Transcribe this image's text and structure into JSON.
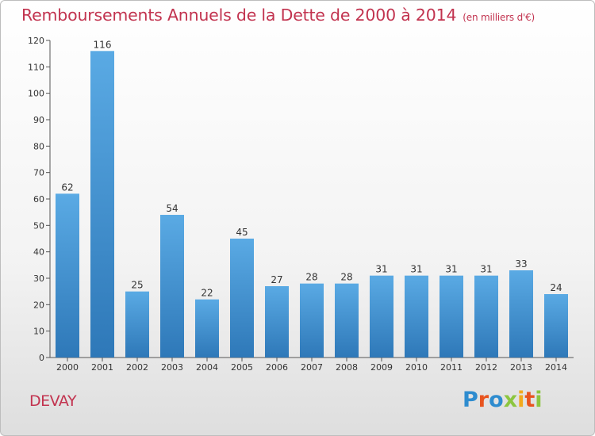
{
  "chart_data": {
    "type": "bar",
    "title": "Remboursements Annuels de la Dette de 2000 à 2014",
    "subtitle": "(en milliers d'€)",
    "categories": [
      "2000",
      "2001",
      "2002",
      "2003",
      "2004",
      "2005",
      "2006",
      "2007",
      "2008",
      "2009",
      "2010",
      "2011",
      "2012",
      "2013",
      "2014"
    ],
    "values": [
      62,
      116,
      25,
      54,
      22,
      45,
      27,
      28,
      28,
      31,
      31,
      31,
      31,
      33,
      24
    ],
    "ylim": [
      0,
      120
    ],
    "yticks": [
      0,
      10,
      20,
      30,
      40,
      50,
      60,
      70,
      80,
      90,
      100,
      110,
      120
    ],
    "xlabel": "",
    "ylabel": "",
    "grid": false,
    "bar_color": "#4d9fdc",
    "bar_color_dark": "#2d74b5"
  },
  "footer": {
    "commune": "DEVAY",
    "logo": "Proxiti"
  },
  "colors": {
    "title": "#c2334f",
    "logo_letters": [
      "#2e8ccf",
      "#e8541f",
      "#2e8ccf",
      "#8cc63f",
      "#f2a91d",
      "#e8541f",
      "#8cc63f"
    ]
  }
}
